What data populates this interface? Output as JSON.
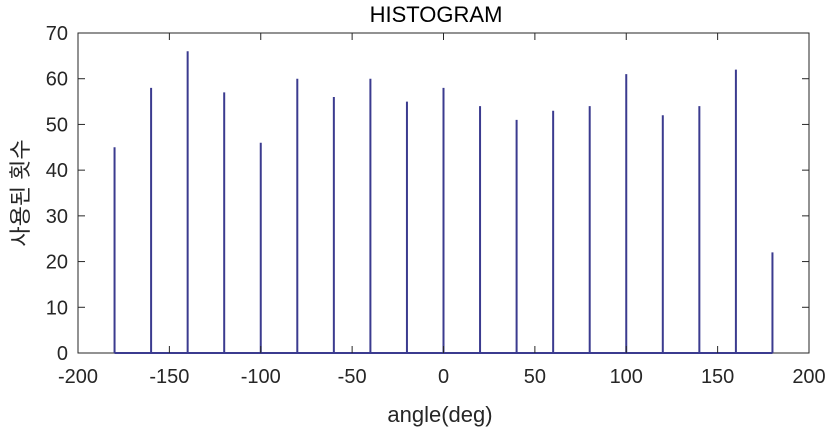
{
  "chart_data": {
    "type": "bar",
    "title": "HISTOGRAM",
    "xlabel": "angle(deg)",
    "ylabel": "사용된 횟수",
    "x": [
      -180,
      -160,
      -140,
      -120,
      -100,
      -80,
      -60,
      -40,
      -20,
      0,
      20,
      40,
      60,
      80,
      100,
      120,
      140,
      160,
      180
    ],
    "values": [
      45,
      58,
      66,
      57,
      46,
      60,
      56,
      60,
      55,
      58,
      54,
      51,
      53,
      54,
      61,
      52,
      54,
      62,
      22
    ],
    "xlim": [
      -200,
      200
    ],
    "ylim": [
      0,
      70
    ],
    "xticks": [
      "-200",
      "-150",
      "-100",
      "-50",
      "0",
      "50",
      "100",
      "150",
      "200"
    ],
    "yticks": [
      "0",
      "10",
      "20",
      "30",
      "40",
      "50",
      "60",
      "70"
    ],
    "grid": false,
    "bar_color": "#3b3b8f"
  }
}
